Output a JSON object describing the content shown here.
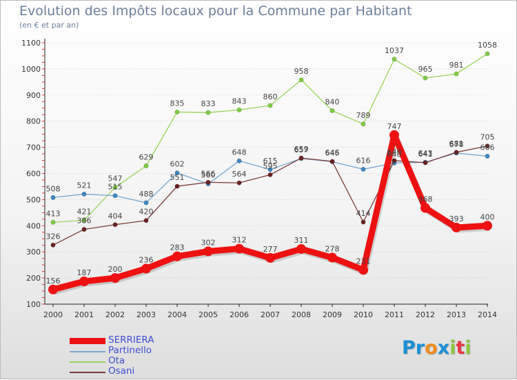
{
  "chart_data": {
    "type": "line",
    "title": "Evolution des Impôts locaux pour la Commune par Habitant",
    "subtitle": "(en € et par an)",
    "xlabel": "",
    "ylabel": "",
    "ylim": [
      100,
      1100
    ],
    "yticks": [
      "100",
      "200",
      "300",
      "400",
      "500",
      "600",
      "700",
      "800",
      "900",
      "1000",
      "1100"
    ],
    "categories": [
      "2000",
      "2001",
      "2002",
      "2003",
      "2004",
      "2005",
      "2006",
      "2007",
      "2008",
      "2009",
      "2010",
      "2011",
      "2012",
      "2013",
      "2014"
    ],
    "grid": true,
    "legend_position": "bottom-left",
    "series": [
      {
        "name": "Ota",
        "color": "#99d45a",
        "marker_color": "#7fcc44",
        "values": [
          413,
          421,
          547,
          629,
          835,
          833,
          843,
          860,
          958,
          840,
          789,
          1037,
          965,
          981,
          1058
        ],
        "labels": [
          "413",
          "421",
          "547",
          "629",
          "835",
          "833",
          "843",
          "860",
          "958",
          "840",
          "789",
          "1037",
          "965",
          "981",
          "1058"
        ]
      },
      {
        "name": "Partinello",
        "color": "#78a7cf",
        "marker_color": "#3f87c5",
        "values": [
          508,
          521,
          515,
          488,
          602,
          560,
          648,
          615,
          657,
          645,
          616,
          640,
          643,
          678,
          666
        ],
        "labels": [
          "508",
          "521",
          "515",
          "488",
          "602",
          "560",
          "648",
          "615",
          "657",
          "645",
          "616",
          "640",
          "643",
          "678",
          "666"
        ]
      },
      {
        "name": "Osani",
        "color": "#7a3a3a",
        "marker_color": "#6b2222",
        "values": [
          326,
          386,
          404,
          420,
          551,
          566,
          564,
          595,
          659,
          646,
          414,
          649,
          641,
          681,
          705
        ],
        "labels": [
          "326",
          "386",
          "404",
          "420",
          "551",
          "566",
          "564",
          "595",
          "659",
          "646",
          "414",
          "649",
          "641",
          "681",
          "705"
        ]
      },
      {
        "name": "SERRIERA",
        "color": "#ee1111",
        "marker_color": "#ee1111",
        "values": [
          156,
          187,
          200,
          236,
          283,
          302,
          312,
          277,
          311,
          278,
          231,
          747,
          468,
          393,
          400
        ],
        "labels": [
          "156",
          "187",
          "200",
          "236",
          "283",
          "302",
          "312",
          "277",
          "311",
          "278",
          "231",
          "747",
          "468",
          "393",
          "400"
        ]
      }
    ],
    "legend": [
      "SERRIERA",
      "Partinello",
      "Ota",
      "Osani"
    ]
  },
  "logo": {
    "text": "Proxiti",
    "letters": [
      "P",
      "r",
      "o",
      "x",
      "i",
      "t",
      "i"
    ],
    "letter_colors": [
      "#1a8fd6",
      "#1a8fd6",
      "#f28c1c",
      "#1a8fd6",
      "#8cc63f",
      "#e63946",
      "#8cc63f"
    ]
  }
}
